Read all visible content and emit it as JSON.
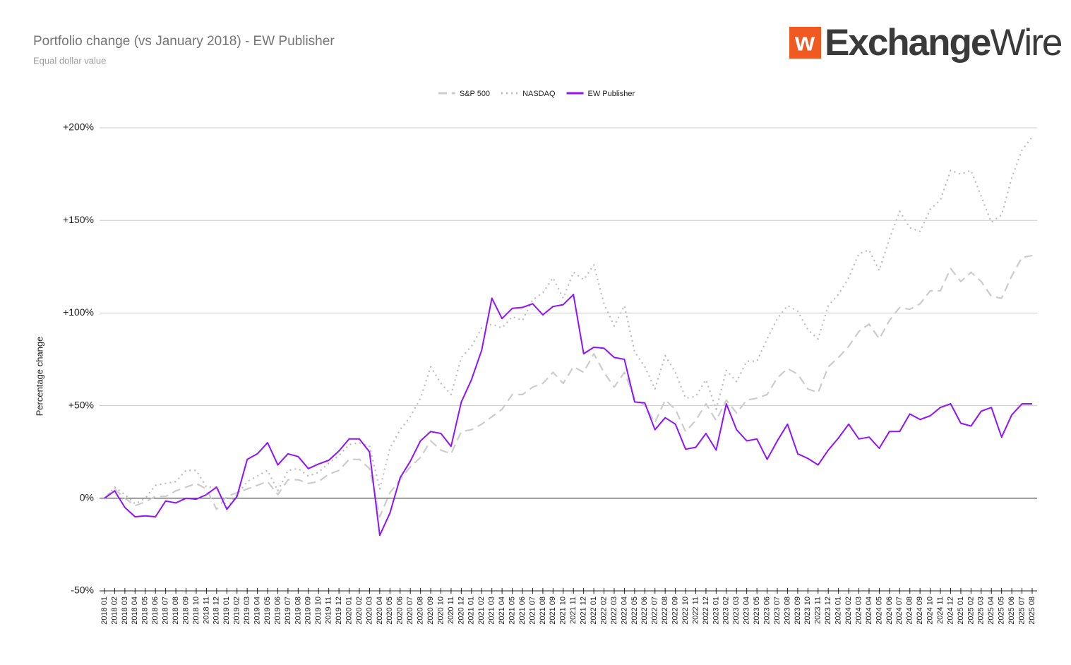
{
  "logo": {
    "icon": "w",
    "text_bold": "Exchange",
    "text_light": "Wire"
  },
  "chart_data": {
    "type": "line",
    "title": "Portfolio change (vs January 2018) - EW Publisher",
    "subtitle": "Equal dollar value",
    "y_label": "Percentage change",
    "legend": "top",
    "grid": true,
    "ylim": [
      -50,
      200
    ],
    "yticks": [
      {
        "value": -50,
        "label": "-50%"
      },
      {
        "value": 0,
        "label": "0%"
      },
      {
        "value": 50,
        "label": "+50%"
      },
      {
        "value": 100,
        "label": "+100%"
      },
      {
        "value": 150,
        "label": "+150%"
      },
      {
        "value": 200,
        "label": "+200%"
      }
    ],
    "categories": [
      "2018 01",
      "2018 02",
      "2018 03",
      "2018 04",
      "2018 05",
      "2018 06",
      "2018 07",
      "2018 08",
      "2018 09",
      "2018 10",
      "2018 11",
      "2018 12",
      "2019 01",
      "2019 02",
      "2019 03",
      "2019 04",
      "2019 05",
      "2019 06",
      "2019 07",
      "2019 08",
      "2019 09",
      "2019 10",
      "2019 11",
      "2019 12",
      "2020 01",
      "2020 02",
      "2020 03",
      "2020 04",
      "2020 05",
      "2020 06",
      "2020 07",
      "2020 08",
      "2020 09",
      "2020 10",
      "2020 11",
      "2020 12",
      "2021 01",
      "2021 02",
      "2021 03",
      "2021 04",
      "2021 05",
      "2021 06",
      "2021 07",
      "2021 08",
      "2021 09",
      "2021 10",
      "2021 11",
      "2021 12",
      "2022 01",
      "2022 02",
      "2022 03",
      "2022 04",
      "2022 05",
      "2022 06",
      "2022 07",
      "2022 08",
      "2022 09",
      "2022 10",
      "2022 11",
      "2022 12",
      "2023 01",
      "2023 02",
      "2023 03",
      "2023 04",
      "2023 05",
      "2023 06",
      "2023 07",
      "2023 08",
      "2023 09",
      "2023 10",
      "2023 11",
      "2023 12",
      "2024 01",
      "2024 02",
      "2024 03",
      "2024 04",
      "2024 05",
      "2024 06",
      "2024 07",
      "2024 08",
      "2024 09",
      "2024 10",
      "2024 11",
      "2024 12",
      "2025 01",
      "2025 02",
      "2025 03",
      "2025 04",
      "2025 05",
      "2025 06",
      "2025 07",
      "2025 08"
    ],
    "series": [
      {
        "name": "S&P 500",
        "color": "#cccccc",
        "dash": "dashed",
        "values": [
          0,
          5,
          0,
          -4,
          -2,
          1,
          1,
          4,
          6,
          8,
          5,
          -6,
          1,
          3,
          5,
          7,
          9,
          2,
          10,
          10,
          8,
          9,
          13,
          15,
          21,
          21,
          16,
          -10,
          3,
          10,
          17,
          22,
          31,
          26,
          24,
          36,
          37,
          40,
          44,
          48,
          56,
          56,
          60,
          62,
          68,
          62,
          71,
          68,
          78,
          68,
          60,
          68,
          54,
          50,
          41,
          53,
          48,
          36,
          42,
          51,
          42,
          53,
          46,
          53,
          54,
          56,
          65,
          70,
          67,
          59,
          57,
          71,
          76,
          82,
          90,
          94,
          86,
          96,
          103,
          102,
          105,
          112,
          112,
          124,
          117,
          122,
          117,
          109,
          108,
          120,
          130,
          131
        ]
      },
      {
        "name": "NASDAQ",
        "color": "#bbbbbb",
        "dash": "dotted",
        "values": [
          0,
          6,
          2,
          -3,
          0,
          7,
          8,
          9,
          15,
          15,
          6,
          6,
          -5,
          2,
          9,
          12,
          15,
          4,
          15,
          16,
          12,
          14,
          19,
          23,
          29,
          30,
          28,
          5,
          27,
          37,
          44,
          54,
          71,
          62,
          56,
          76,
          82,
          92,
          94,
          92,
          98,
          96,
          107,
          111,
          119,
          108,
          122,
          118,
          126,
          105,
          93,
          104,
          79,
          71,
          59,
          77,
          68,
          54,
          55,
          64,
          48,
          69,
          63,
          74,
          74,
          86,
          97,
          104,
          101,
          91,
          86,
          104,
          110,
          119,
          132,
          134,
          123,
          140,
          155,
          146,
          144,
          156,
          161,
          177,
          175,
          177,
          163,
          149,
          153,
          173,
          188,
          195
        ]
      },
      {
        "name": "EW Publisher",
        "color": "#9013fe",
        "dash": "solid",
        "values": [
          0,
          4,
          -5,
          -10,
          -9.5,
          -10,
          -1.5,
          -2.5,
          0,
          -0.5,
          2,
          6,
          -6,
          1,
          21,
          24,
          30,
          18,
          24,
          22.5,
          16,
          18.5,
          20.5,
          25.5,
          32,
          32,
          25,
          -20,
          -8,
          11,
          20,
          31,
          36,
          35,
          28,
          52,
          64,
          80,
          108,
          97,
          102.5,
          103,
          105,
          99,
          103.5,
          104.5,
          110,
          78,
          81.5,
          81,
          76,
          75,
          52,
          51.5,
          37,
          43.5,
          40,
          26.5,
          27.5,
          35,
          26,
          51,
          37,
          31,
          32,
          21,
          31,
          40,
          24,
          21.5,
          18,
          26,
          32.5,
          40,
          32,
          33,
          27,
          36,
          36,
          45.5,
          42.5,
          44.5,
          49,
          51,
          40.5,
          39,
          47,
          49,
          33,
          45,
          51,
          51
        ]
      }
    ]
  }
}
